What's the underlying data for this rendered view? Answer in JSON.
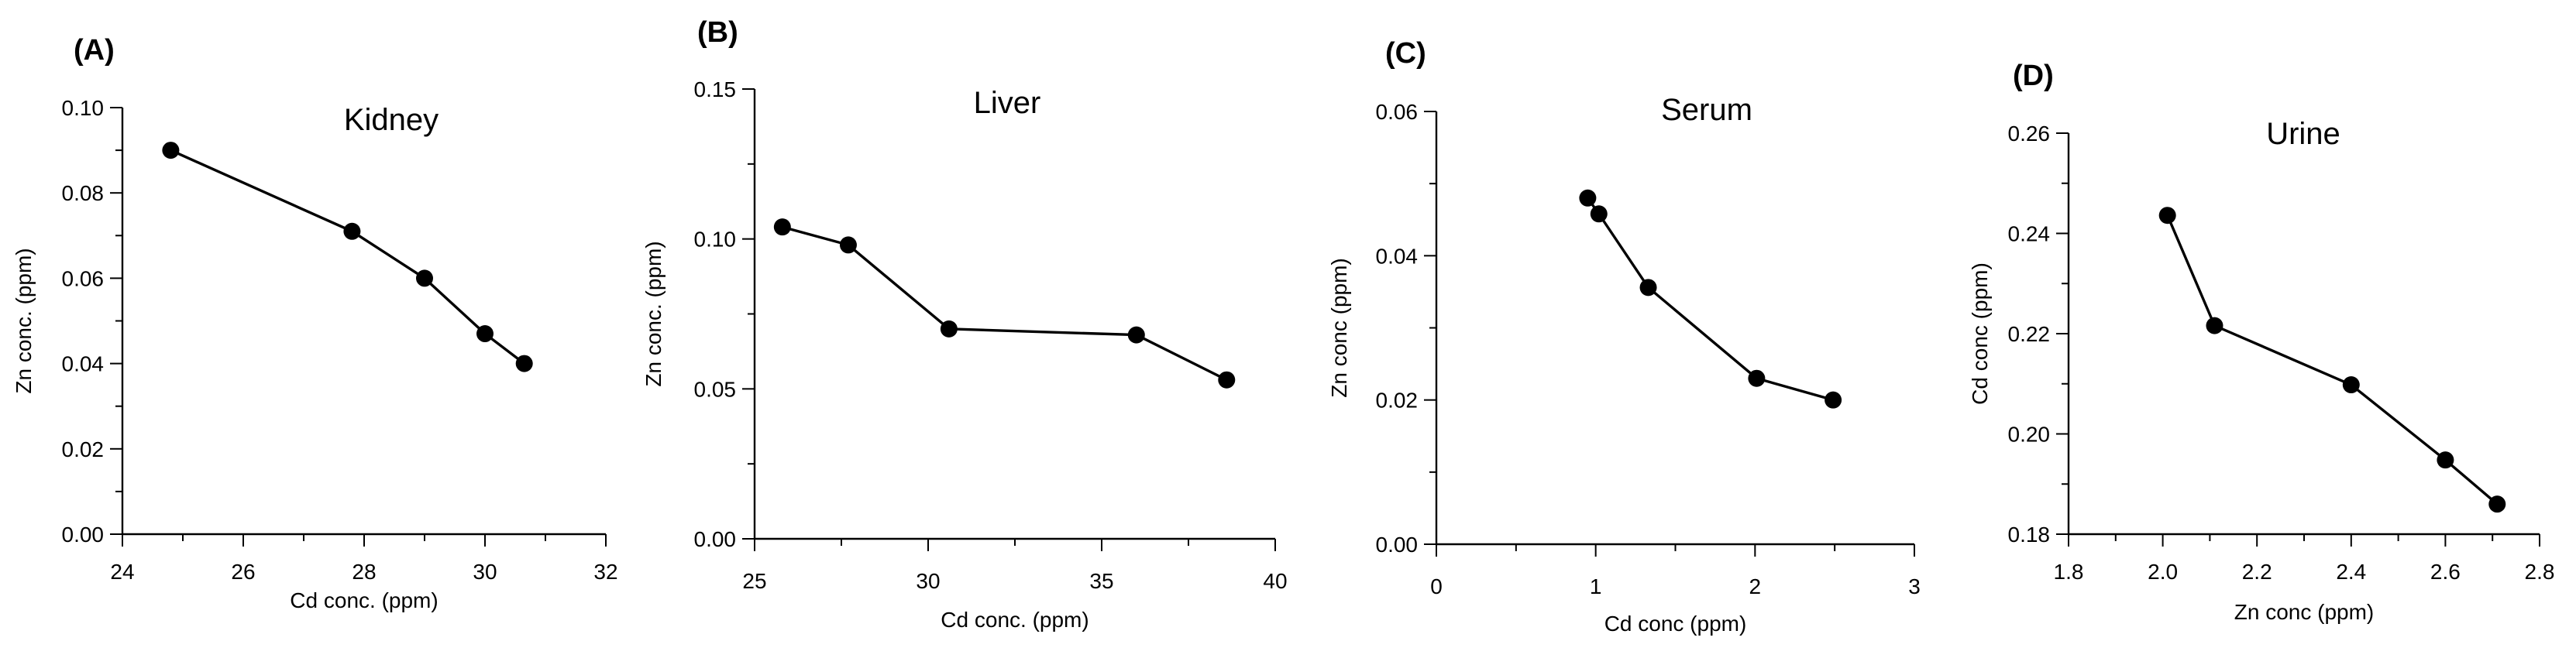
{
  "chart_data": [
    {
      "type": "line",
      "panel": "(A)",
      "title": "Kidney",
      "xlabel": "Cd conc. (ppm)",
      "ylabel": "Zn conc. (ppm)",
      "xlim": [
        24,
        32
      ],
      "ylim": [
        0,
        0.1
      ],
      "xticks": [
        "24",
        "26",
        "28",
        "30",
        "32"
      ],
      "yticks": [
        "0.00",
        "0.02",
        "0.04",
        "0.06",
        "0.08",
        "0.10"
      ],
      "x": [
        24.8,
        27.8,
        29.0,
        30.0,
        30.65
      ],
      "y": [
        0.09,
        0.071,
        0.06,
        0.047,
        0.04
      ],
      "grid": false,
      "legend": "none"
    },
    {
      "type": "line",
      "panel": "(B)",
      "title": "Liver",
      "xlabel": "Cd conc. (ppm)",
      "ylabel": "Zn conc. (ppm)",
      "xlim": [
        25,
        40
      ],
      "ylim": [
        0,
        0.15
      ],
      "xticks": [
        "25",
        "30",
        "35",
        "40"
      ],
      "yticks": [
        "0.00",
        "0.05",
        "0.10",
        "0.15"
      ],
      "x": [
        25.8,
        27.7,
        30.6,
        36.0,
        38.6
      ],
      "y": [
        0.104,
        0.098,
        0.07,
        0.068,
        0.053
      ],
      "grid": false,
      "legend": "none"
    },
    {
      "type": "line",
      "panel": "(C)",
      "title": "Serum",
      "xlabel": "Cd conc (ppm)",
      "ylabel": "Zn conc (ppm)",
      "xlim": [
        0,
        3
      ],
      "ylim": [
        0,
        0.06
      ],
      "xticks": [
        "0",
        "1",
        "2",
        "3"
      ],
      "yticks": [
        "0.00",
        "0.02",
        "0.04",
        "0.06"
      ],
      "x": [
        0.95,
        1.02,
        1.33,
        2.01,
        2.49
      ],
      "y": [
        0.048,
        0.0458,
        0.0356,
        0.023,
        0.02
      ],
      "grid": false,
      "legend": "none"
    },
    {
      "type": "line",
      "panel": "(D)",
      "title": "Urine",
      "xlabel": "Zn conc (ppm)",
      "ylabel": "Cd conc (ppm)",
      "xlim": [
        1.8,
        2.8
      ],
      "ylim": [
        0.18,
        0.26
      ],
      "xticks": [
        "1.8",
        "2.0",
        "2.2",
        "2.4",
        "2.6",
        "2.8"
      ],
      "yticks": [
        "0.18",
        "0.20",
        "0.22",
        "0.24",
        "0.26"
      ],
      "x": [
        2.01,
        2.11,
        2.4,
        2.6,
        2.71
      ],
      "y": [
        0.2436,
        0.2216,
        0.2098,
        0.1948,
        0.186
      ],
      "grid": false,
      "legend": "none"
    }
  ]
}
